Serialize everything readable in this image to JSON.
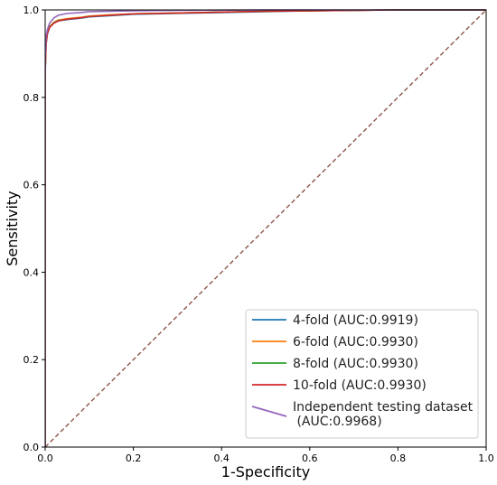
{
  "chart_data": {
    "type": "line",
    "title": "",
    "xlabel": "1-Specificity",
    "ylabel": "Sensitivity",
    "xlim": [
      0.0,
      1.0
    ],
    "ylim": [
      0.0,
      1.0
    ],
    "xticks": [
      "0.0",
      "0.2",
      "0.4",
      "0.6",
      "0.8",
      "1.0"
    ],
    "yticks": [
      "0.0",
      "0.2",
      "0.4",
      "0.6",
      "0.8",
      "1.0"
    ],
    "grid": false,
    "legend_position": "lower-right",
    "diagonal": {
      "x": [
        0,
        1
      ],
      "y": [
        0,
        1
      ],
      "color": "#8c564b",
      "style": "dashed"
    },
    "series": [
      {
        "name": "4-fold (AUC:0.9919)",
        "color": "#1f77b4",
        "x": [
          0,
          0.0,
          0.002,
          0.005,
          0.01,
          0.02,
          0.03,
          0.05,
          0.08,
          0.1,
          0.15,
          0.2,
          0.3,
          0.4,
          0.5,
          0.6,
          0.7,
          0.8,
          1.0
        ],
        "y": [
          0,
          0.85,
          0.92,
          0.945,
          0.96,
          0.97,
          0.975,
          0.978,
          0.981,
          0.984,
          0.987,
          0.99,
          0.992,
          0.994,
          0.996,
          0.998,
          0.999,
          1.0,
          1.0
        ]
      },
      {
        "name": "6-fold (AUC:0.9930)",
        "color": "#ff7f0e",
        "x": [
          0,
          0.0,
          0.002,
          0.005,
          0.01,
          0.02,
          0.03,
          0.05,
          0.08,
          0.1,
          0.15,
          0.2,
          0.3,
          0.4,
          0.5,
          0.6,
          0.7,
          0.8,
          1.0
        ],
        "y": [
          0,
          0.86,
          0.925,
          0.948,
          0.962,
          0.972,
          0.977,
          0.98,
          0.983,
          0.986,
          0.989,
          0.991,
          0.993,
          0.995,
          0.997,
          0.998,
          0.999,
          1.0,
          1.0
        ]
      },
      {
        "name": "8-fold (AUC:0.9930)",
        "color": "#2ca02c",
        "x": [
          0,
          0.0,
          0.002,
          0.005,
          0.01,
          0.02,
          0.03,
          0.05,
          0.08,
          0.1,
          0.15,
          0.2,
          0.3,
          0.4,
          0.5,
          0.6,
          0.7,
          0.8,
          1.0
        ],
        "y": [
          0,
          0.86,
          0.925,
          0.947,
          0.961,
          0.971,
          0.976,
          0.979,
          0.982,
          0.985,
          0.988,
          0.991,
          0.993,
          0.995,
          0.997,
          0.998,
          0.999,
          1.0,
          1.0
        ]
      },
      {
        "name": "10-fold (AUC:0.9930)",
        "color": "#d62728",
        "x": [
          0,
          0.0,
          0.002,
          0.005,
          0.01,
          0.02,
          0.03,
          0.05,
          0.08,
          0.1,
          0.15,
          0.2,
          0.3,
          0.4,
          0.5,
          0.6,
          0.7,
          0.8,
          1.0
        ],
        "y": [
          0,
          0.86,
          0.922,
          0.946,
          0.96,
          0.97,
          0.975,
          0.979,
          0.982,
          0.985,
          0.988,
          0.991,
          0.993,
          0.995,
          0.997,
          0.998,
          0.999,
          1.0,
          1.0
        ]
      },
      {
        "name": "Independent testing dataset\n (AUC:0.9968)",
        "color": "#9467bd",
        "x": [
          0,
          0.0,
          0.002,
          0.005,
          0.01,
          0.02,
          0.03,
          0.05,
          0.08,
          0.1,
          0.15,
          0.2,
          0.3,
          0.5,
          0.7,
          1.0
        ],
        "y": [
          0,
          0.89,
          0.94,
          0.955,
          0.97,
          0.982,
          0.988,
          0.992,
          0.994,
          0.996,
          0.997,
          0.998,
          0.999,
          1.0,
          1.0,
          1.0
        ]
      }
    ]
  }
}
